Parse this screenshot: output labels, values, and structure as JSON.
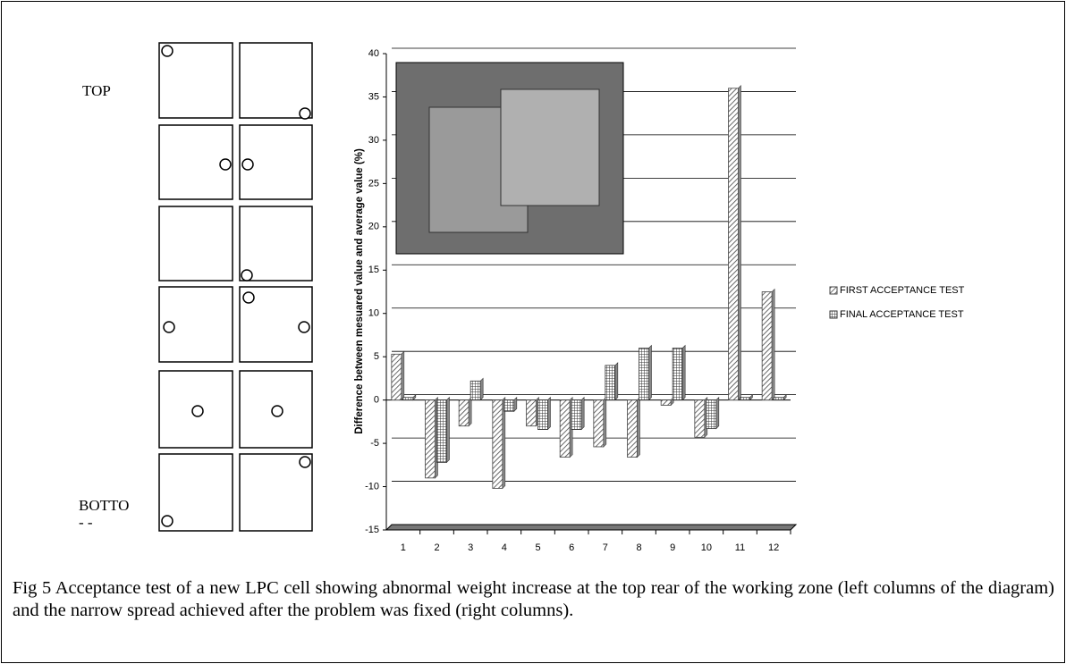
{
  "diagram": {
    "top_label": "TOP",
    "bottom_label": "BOTTO",
    "bottom_label_suffix": "- -"
  },
  "chart_data": {
    "type": "bar",
    "y_label": "Difference between mesuared value and average value (%)",
    "categories": [
      "1",
      "2",
      "3",
      "4",
      "5",
      "6",
      "7",
      "8",
      "9",
      "10",
      "11",
      "12"
    ],
    "series": [
      {
        "name": "FIRST ACCEPTANCE TEST",
        "color": "#444444",
        "values": [
          5.3,
          -9,
          -3,
          -10.2,
          -3,
          -6.6,
          -5.4,
          -6.6,
          -0.6,
          -4.3,
          36,
          12.5
        ]
      },
      {
        "name": "FINAL ACCEPTANCE TEST",
        "color": "#333333",
        "values": [
          0.3,
          -7.2,
          2.2,
          -1.3,
          -3.4,
          -3.4,
          4,
          6,
          6,
          -3.3,
          0.3,
          0.3
        ]
      }
    ],
    "ylim": [
      -15,
      40
    ],
    "yticks": [
      -15,
      -10,
      -5,
      0,
      5,
      10,
      15,
      20,
      25,
      30,
      35,
      40
    ],
    "grid": true,
    "legend": "right"
  },
  "caption": "Fig 5 Acceptance test of a new LPC cell showing abnormal weight increase at the top rear of the working zone (left columns of the diagram) and the narrow spread achieved after the problem was fixed (right columns)."
}
